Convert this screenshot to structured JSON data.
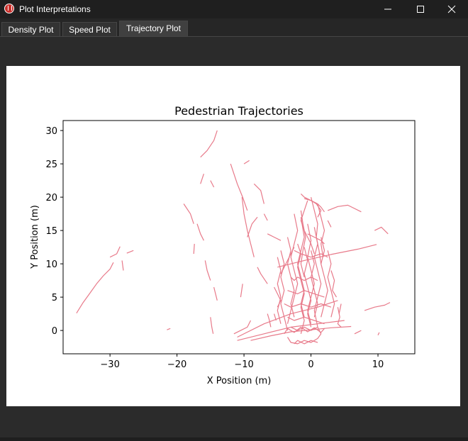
{
  "window": {
    "title": "Plot Interpretations",
    "icon": "app-logo-icon",
    "controls": [
      "minimize-icon",
      "maximize-icon",
      "close-icon"
    ]
  },
  "tabs": [
    {
      "label": "Density Plot",
      "active": false
    },
    {
      "label": "Speed Plot",
      "active": false
    },
    {
      "label": "Trajectory Plot",
      "active": true
    }
  ],
  "colors": {
    "window_bg": "#2b2b2b",
    "titlebar_bg": "#1f1f1f",
    "trajectory_line": "#e87a8a"
  },
  "chart_data": {
    "type": "line",
    "title": "Pedestrian Trajectories",
    "xlabel": "X Position (m)",
    "ylabel": "Y Position (m)",
    "xlim": [
      -37,
      15.5
    ],
    "ylim": [
      -3.5,
      31.5
    ],
    "xticks": [
      -30,
      -20,
      -10,
      0,
      10
    ],
    "yticks": [
      0,
      5,
      10,
      15,
      20,
      25,
      30
    ],
    "xtick_labels": [
      "−30",
      "−20",
      "−10",
      "0",
      "10"
    ],
    "ytick_labels": [
      "0",
      "5",
      "10",
      "15",
      "20",
      "25",
      "30"
    ],
    "grid": false,
    "legend": false,
    "series": [
      {
        "x": [
          -35,
          -34,
          -33,
          -32,
          -31,
          -30,
          -29.5
        ],
        "y": [
          2.6,
          4.2,
          5.6,
          7,
          8.2,
          9.2,
          10.2
        ]
      },
      {
        "x": [
          -30,
          -29,
          -28.5
        ],
        "y": [
          11,
          11.5,
          12.6
        ]
      },
      {
        "x": [
          -27.5,
          -26.5
        ],
        "y": [
          11.6,
          12
        ]
      },
      {
        "x": [
          -28,
          -28.2
        ],
        "y": [
          9,
          10.5
        ]
      },
      {
        "x": [
          -21.5,
          -21
        ],
        "y": [
          0.1,
          0.3
        ]
      },
      {
        "x": [
          -19,
          -18,
          -17.5
        ],
        "y": [
          19,
          17.5,
          16
        ]
      },
      {
        "x": [
          -17,
          -16.5,
          -16
        ],
        "y": [
          16,
          14.5,
          13.5
        ]
      },
      {
        "x": [
          -17.5,
          -17.4
        ],
        "y": [
          11.5,
          13
        ]
      },
      {
        "x": [
          -15.8,
          -15.5,
          -15
        ],
        "y": [
          10.5,
          9,
          7.5
        ]
      },
      {
        "x": [
          -14.5,
          -14
        ],
        "y": [
          6.5,
          4.5
        ]
      },
      {
        "x": [
          -15,
          -14.8,
          -14.6
        ],
        "y": [
          2,
          0.5,
          -0.5
        ]
      },
      {
        "x": [
          -16.5,
          -16
        ],
        "y": [
          22,
          23.5
        ]
      },
      {
        "x": [
          -16.5,
          -15.5,
          -14.5,
          -14
        ],
        "y": [
          26,
          27,
          28.5,
          30
        ]
      },
      {
        "x": [
          -15,
          -14.5
        ],
        "y": [
          22.5,
          21.5
        ]
      },
      {
        "x": [
          -12,
          -11.5,
          -11,
          -10.2,
          -9.5
        ],
        "y": [
          25,
          23.5,
          22,
          20,
          18
        ]
      },
      {
        "x": [
          -10.3,
          -10,
          -9.5,
          -9,
          -8.5
        ],
        "y": [
          20,
          17.5,
          15,
          13,
          11
        ]
      },
      {
        "x": [
          -9.5,
          -8.8,
          -8
        ],
        "y": [
          14,
          16,
          17
        ]
      },
      {
        "x": [
          -10,
          -9.2
        ],
        "y": [
          25,
          25.5
        ]
      },
      {
        "x": [
          -8.5,
          -7.5,
          -7
        ],
        "y": [
          22,
          21,
          19
        ]
      },
      {
        "x": [
          -7,
          -6.5
        ],
        "y": [
          17.5,
          16.5
        ]
      },
      {
        "x": [
          -6.5,
          -5.5,
          -4.5
        ],
        "y": [
          14.5,
          14,
          13.5
        ]
      },
      {
        "x": [
          -8,
          -7.5,
          -6.5
        ],
        "y": [
          9.5,
          8.5,
          7
        ]
      },
      {
        "x": [
          -10.5,
          -10.2
        ],
        "y": [
          5,
          7
        ]
      },
      {
        "x": [
          -11.5,
          -10.5,
          -9.5,
          -9
        ],
        "y": [
          -0.5,
          0,
          0.5,
          1.5
        ]
      },
      {
        "x": [
          -11,
          -7,
          -3,
          1,
          4
        ],
        "y": [
          -1,
          1,
          2.5,
          3.5,
          4.5
        ]
      },
      {
        "x": [
          -11,
          -7,
          -3,
          1,
          5
        ],
        "y": [
          -1.5,
          -0.5,
          0.5,
          1,
          1.5
        ]
      },
      {
        "x": [
          -9,
          -6,
          -3,
          0,
          3,
          6
        ],
        "y": [
          -1.5,
          -0.8,
          -0.2,
          0.1,
          0.4,
          0.6
        ]
      },
      {
        "x": [
          -5,
          -1,
          3,
          7,
          9.8
        ],
        "y": [
          9.5,
          10.5,
          11.4,
          12.2,
          12.9
        ]
      },
      {
        "x": [
          2.5,
          4,
          5.5,
          7.5
        ],
        "y": [
          18,
          18.6,
          18.8,
          17.8
        ]
      },
      {
        "x": [
          9.5,
          10.5,
          11.5
        ],
        "y": [
          15,
          15.5,
          14.5
        ]
      },
      {
        "x": [
          8,
          9.5,
          11,
          11.8
        ],
        "y": [
          3,
          3.5,
          3.8,
          4.2
        ]
      },
      {
        "x": [
          6.5,
          7.5
        ],
        "y": [
          -0.5,
          0
        ]
      },
      {
        "x": [
          10,
          10.2
        ],
        "y": [
          -0.7,
          -0.3
        ]
      },
      {
        "x": [
          4,
          4.3,
          4,
          4.5
        ],
        "y": [
          3.5,
          2,
          1,
          0.5
        ]
      },
      {
        "x": [
          -1.5,
          -1,
          0,
          0.8,
          1.5,
          1
        ],
        "y": [
          20.5,
          20,
          19.5,
          19,
          18,
          17
        ]
      },
      {
        "x": [
          -1,
          0,
          1,
          1.5,
          2
        ],
        "y": [
          19.8,
          19.5,
          19,
          18.5,
          17.8
        ]
      },
      {
        "x": [
          -0.5,
          -1,
          -1.5,
          -1,
          -0.5,
          0,
          0.5
        ],
        "y": [
          19.5,
          18,
          16.5,
          15,
          14,
          13,
          11.5
        ]
      },
      {
        "x": [
          0,
          0.5,
          1,
          0.8,
          1.2,
          1.5
        ],
        "y": [
          20,
          18,
          16,
          14,
          12,
          10
        ]
      },
      {
        "x": [
          1,
          1.5,
          2,
          1.5,
          1.8
        ],
        "y": [
          19,
          17,
          15,
          13,
          11
        ]
      },
      {
        "x": [
          -1.5,
          -1.2,
          -0.8,
          -1.2,
          -1.5,
          -1
        ],
        "y": [
          18,
          16,
          14,
          12,
          10,
          8
        ]
      },
      {
        "x": [
          -2.5,
          -2,
          -2.5,
          -3,
          -2.5,
          -2,
          -2.5,
          -3,
          -3.5
        ],
        "y": [
          17.5,
          15,
          13,
          11,
          9,
          7,
          5,
          3,
          1
        ]
      },
      {
        "x": [
          -1.5,
          -1,
          -1.5,
          -2,
          -1.5,
          -1,
          -1.5,
          -1
        ],
        "y": [
          17,
          14,
          12,
          10,
          8,
          6,
          4,
          2
        ]
      },
      {
        "x": [
          -0.5,
          0,
          -0.5,
          0,
          0.5,
          0,
          -0.5,
          0
        ],
        "y": [
          16,
          13.5,
          11,
          9,
          7,
          5,
          3,
          1
        ]
      },
      {
        "x": [
          0.5,
          1,
          0.5,
          1,
          1.5,
          1,
          0.5,
          1
        ],
        "y": [
          15.5,
          13,
          11,
          9,
          7,
          5,
          3,
          0.5
        ]
      },
      {
        "x": [
          1.5,
          2,
          1.5,
          2,
          2.5,
          2,
          1.5
        ],
        "y": [
          14,
          12,
          10,
          8,
          6,
          4,
          2
        ]
      },
      {
        "x": [
          -3.5,
          -3,
          -3.5,
          -3,
          -2.5,
          -3,
          -2.5
        ],
        "y": [
          14,
          12,
          10,
          8,
          6,
          4,
          2
        ]
      },
      {
        "x": [
          -4.5,
          -4,
          -4.5,
          -4,
          -4.5,
          -4,
          -3.5
        ],
        "y": [
          12,
          10,
          8,
          6,
          4,
          2,
          0
        ]
      },
      {
        "x": [
          -5,
          -4.5,
          -5,
          -4.5,
          -5,
          -4.5
        ],
        "y": [
          11,
          9,
          7,
          5,
          3,
          1
        ]
      },
      {
        "x": [
          2.5,
          3,
          2.5,
          3,
          3.5,
          3
        ],
        "y": [
          12,
          10,
          8,
          6,
          4,
          2
        ]
      },
      {
        "x": [
          3,
          3.5,
          3.2,
          3.8
        ],
        "y": [
          9,
          7.5,
          6,
          5
        ]
      },
      {
        "x": [
          -2,
          -1.5,
          -2,
          -1.5,
          -1,
          -1.5,
          -1,
          -1.5
        ],
        "y": [
          13,
          11.5,
          9.5,
          7.5,
          5.5,
          3.5,
          1.5,
          -0.5
        ]
      },
      {
        "x": [
          -1,
          -0.5,
          -1,
          -0.5,
          0,
          -0.5,
          0
        ],
        "y": [
          12.5,
          10.5,
          8.5,
          6.5,
          4.5,
          2.5,
          0.5
        ]
      },
      {
        "x": [
          0,
          0.5,
          0,
          0.5,
          1,
          0.5
        ],
        "y": [
          12,
          10,
          8,
          6,
          4,
          2
        ]
      },
      {
        "x": [
          -3,
          -2.5,
          -2,
          -1,
          0,
          1
        ],
        "y": [
          8,
          7.5,
          8,
          7.5,
          8,
          7.5
        ]
      },
      {
        "x": [
          -3.5,
          -2,
          -1,
          0.5,
          2
        ],
        "y": [
          6,
          5.5,
          6,
          5.5,
          5
        ]
      },
      {
        "x": [
          -4,
          -3,
          -1.5,
          0,
          1.5,
          3
        ],
        "y": [
          4,
          3.5,
          4,
          3.5,
          4,
          3.5
        ]
      },
      {
        "x": [
          -3.5,
          -2.5,
          -1,
          0.5,
          2
        ],
        "y": [
          2,
          1.5,
          2,
          1.5,
          1
        ]
      },
      {
        "x": [
          -3.5,
          -3,
          -2,
          -1,
          0,
          1,
          1.5,
          1,
          0,
          -1,
          -2,
          -3
        ],
        "y": [
          -1,
          -1.8,
          -2,
          -1.5,
          -1.8,
          -1.2,
          -0.5,
          0.5,
          0,
          0.5,
          0,
          0.5
        ]
      },
      {
        "x": [
          -4,
          -3.5,
          -2.5,
          -1.5,
          -0.5,
          0.5,
          1.5,
          2
        ],
        "y": [
          -0.5,
          0.3,
          -0.3,
          0.5,
          -0.2,
          0.4,
          -0.3,
          0.3
        ]
      },
      {
        "x": [
          -2.5,
          -2,
          -1,
          0,
          1
        ],
        "y": [
          -2,
          -1.5,
          -2,
          -1.5,
          -1.8
        ]
      },
      {
        "x": [
          -4.5,
          -4,
          -3.5,
          -3,
          -2.5
        ],
        "y": [
          8.5,
          9.5,
          10.5,
          11.5,
          12.5
        ]
      },
      {
        "x": [
          -5.5,
          -5,
          -4.5,
          -5
        ],
        "y": [
          6.5,
          5.5,
          4.5,
          3.5
        ]
      },
      {
        "x": [
          -5.5,
          -5.2
        ],
        "y": [
          2.5,
          1.5
        ]
      },
      {
        "x": [
          -6.5,
          -6.2,
          -6
        ],
        "y": [
          2.5,
          1.5,
          0.5
        ]
      },
      {
        "x": [
          4.5,
          4.2
        ],
        "y": [
          4,
          2.5
        ]
      },
      {
        "x": [
          2.5,
          3
        ],
        "y": [
          16.5,
          15.5
        ]
      },
      {
        "x": [
          -0.5,
          0.5,
          1.5,
          2
        ],
        "y": [
          14.5,
          14,
          13.5,
          13
        ]
      },
      {
        "x": [
          -2.5,
          -1.5,
          0,
          1.5,
          2.5
        ],
        "y": [
          12,
          11.5,
          11,
          11.5,
          11
        ]
      }
    ]
  }
}
